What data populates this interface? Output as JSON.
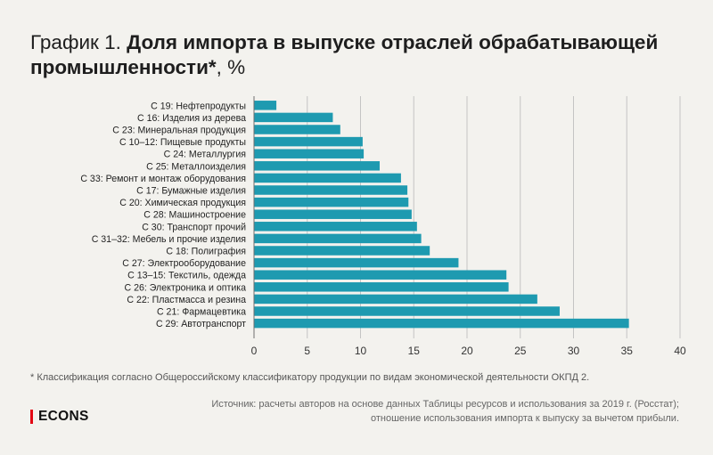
{
  "header": {
    "title_prefix": "График 1.",
    "title_main": "Доля импорта в выпуске отраслей обрабатывающей промышленности*",
    "title_unit": ", %"
  },
  "chart_data": {
    "type": "bar",
    "orientation": "horizontal",
    "title": "График 1. Доля импорта в выпуске отраслей обрабатывающей промышленности*, %",
    "xlabel": "",
    "ylabel": "",
    "xlim": [
      0,
      40
    ],
    "xticks": [
      0,
      5,
      10,
      15,
      20,
      25,
      30,
      35,
      40
    ],
    "grid": "vertical",
    "bar_color": "#1e9ab0",
    "categories": [
      "С 19: Нефтепродукты",
      "С 16: Изделия из дерева",
      "С 23: Минеральная продукция",
      "С 10–12: Пищевые продукты",
      "С 24: Металлургия",
      "С 25: Металлоизделия",
      "С 33: Ремонт и монтаж оборудования",
      "С 17: Бумажные изделия",
      "С 20: Химическая продукция",
      "С 28: Машиностроение",
      "С 30: Транспорт прочий",
      "С 31–32: Мебель и прочие изделия",
      "С 18: Полиграфия",
      "С 27: Электрооборудование",
      "С 13–15: Текстиль, одежда",
      "С 26: Электроника и оптика",
      "С 22: Пластмасса и резина",
      "С 21: Фармацевтика",
      "С 29: Автотранспорт"
    ],
    "values": [
      2.1,
      7.4,
      8.1,
      10.2,
      10.3,
      11.8,
      13.8,
      14.4,
      14.5,
      14.8,
      15.3,
      15.7,
      16.5,
      19.2,
      23.7,
      23.9,
      26.6,
      28.7,
      35.2
    ]
  },
  "footnote": "* Классификация согласно Общероссийскому классификатору продукции по видам экономической деятельности ОКПД 2.",
  "source": {
    "line1": "Источник: расчеты авторов на основе данных Таблицы ресурсов и использования за 2019 г. (Росстат);",
    "line2": "отношение использования импорта к выпуску за вычетом прибыли."
  },
  "logo": {
    "text": "ECONS",
    "accent_color": "#e30613"
  }
}
